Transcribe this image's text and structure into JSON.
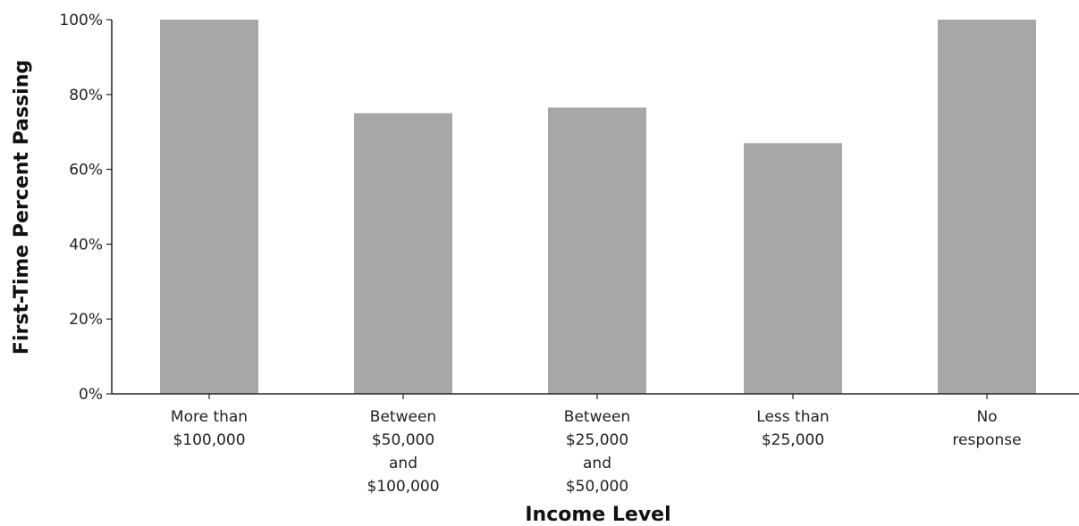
{
  "chart_data": {
    "type": "bar",
    "title": "",
    "xlabel": "Income Level",
    "ylabel": "First-Time Percent Passing",
    "categories": [
      [
        "More than",
        "$100,000"
      ],
      [
        "Between",
        "$50,000",
        "and",
        "$100,000"
      ],
      [
        "Between",
        "$25,000",
        "and",
        "$50,000"
      ],
      [
        "Less than",
        "$25,000"
      ],
      [
        "No",
        "response"
      ]
    ],
    "values": [
      100,
      75,
      76.5,
      67,
      100
    ],
    "ylim": [
      0,
      100
    ],
    "yticks": [
      0,
      20,
      40,
      60,
      80,
      100
    ],
    "ytick_labels": [
      "0%",
      "20%",
      "40%",
      "60%",
      "80%",
      "100%"
    ],
    "bar_color": "#a6a8a8",
    "grid": false,
    "legend": "none"
  }
}
